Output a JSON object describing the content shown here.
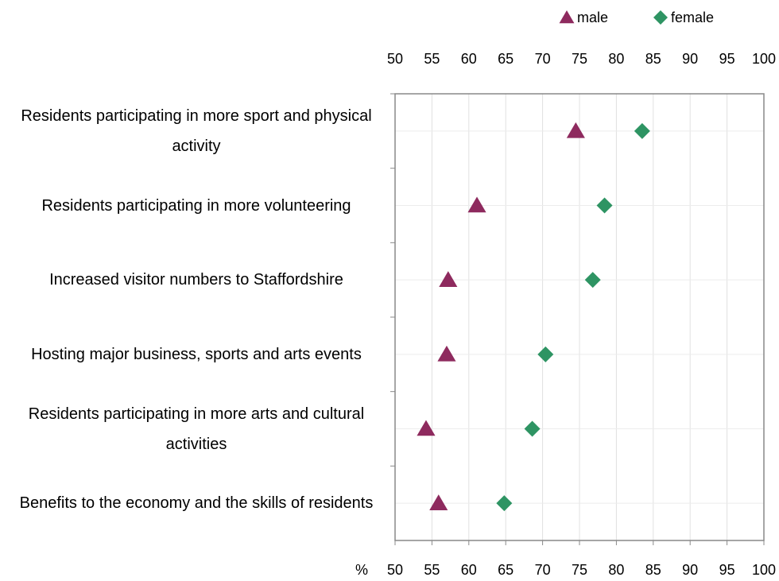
{
  "chart_data": {
    "type": "dot",
    "categories": [
      "Residents participating in more sport and physical activity",
      "Residents participating in more volunteering",
      "Increased visitor numbers to Staffordshire",
      "Hosting major business, sports and arts events",
      "Residents participating in more arts and cultural activities",
      "Benefits to the economy and the skills of residents"
    ],
    "series": [
      {
        "name": "male",
        "color": "#8e2a5e",
        "marker": "triangle",
        "values": [
          74.5,
          61.1,
          57.2,
          57.0,
          54.2,
          55.9
        ]
      },
      {
        "name": "female",
        "color": "#2e9463",
        "marker": "diamond",
        "values": [
          83.5,
          78.4,
          76.8,
          70.4,
          68.6,
          64.8
        ]
      }
    ],
    "x_label": "%",
    "xlim": [
      50,
      100
    ],
    "xticks": [
      50,
      55,
      60,
      65,
      70,
      75,
      80,
      85,
      90,
      95,
      100
    ],
    "grid": true,
    "legend": "top"
  }
}
